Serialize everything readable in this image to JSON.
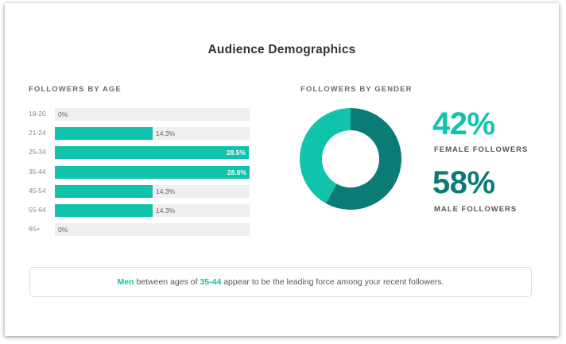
{
  "title": "Audience Demographics",
  "colors": {
    "accent": "#0fc3ad",
    "dark_teal": "#0b7b76",
    "track": "#efefef"
  },
  "chart_data": [
    {
      "type": "bar",
      "orientation": "horizontal",
      "title": "FOLLOWERS BY AGE",
      "categories": [
        "18-20",
        "21-24",
        "25-34",
        "35-44",
        "45-54",
        "55-64",
        "65+"
      ],
      "values": [
        0,
        14.3,
        28.5,
        28.6,
        14.3,
        14.3,
        0
      ],
      "labels": [
        "0%",
        "14.3%",
        "28.5%",
        "28.6%",
        "14.3%",
        "14.3%",
        "0%"
      ],
      "xlim": [
        0,
        28.6
      ],
      "grid": false
    },
    {
      "type": "pie",
      "style": "donut",
      "title": "FOLLOWERS BY GENDER",
      "slices": [
        {
          "name": "FEMALE FOLLOWERS",
          "value": 42,
          "label": "42%",
          "color": "#0fc3ad"
        },
        {
          "name": "MALE FOLLOWERS",
          "value": 58,
          "label": "58%",
          "color": "#0b7b76"
        }
      ]
    }
  ],
  "insight": {
    "gender": "Men",
    "part1": " between ages of ",
    "age": "35-44",
    "part2": " appear to be the leading force among your recent followers."
  }
}
